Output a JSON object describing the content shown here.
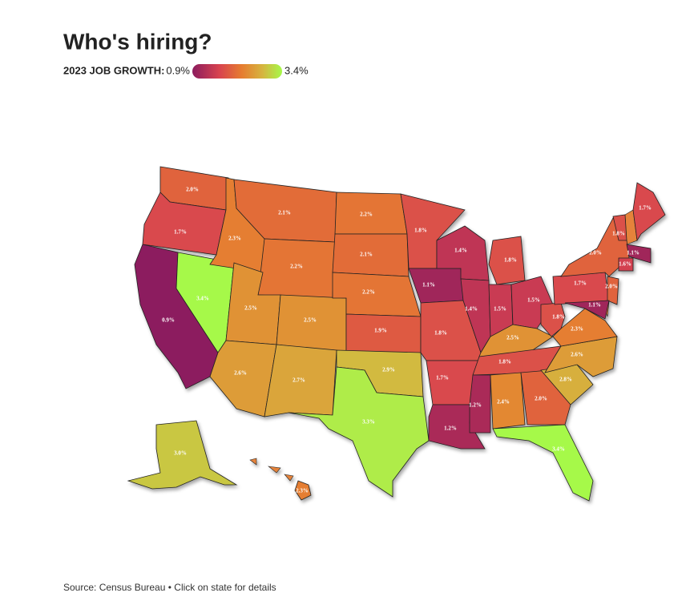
{
  "chart_data": {
    "type": "choropleth",
    "title": "Who's hiring?",
    "legend_title": "2023 JOB GROWTH:",
    "legend_range": [
      {
        "value": 0.9,
        "label": "0.9%"
      },
      {
        "value": 3.4,
        "label": "3.4%"
      }
    ],
    "values": [
      2.0,
      1.7,
      0.9,
      3.4,
      2.3,
      2.1,
      2.2,
      2.5,
      2.5,
      2.6,
      2.7,
      2.2,
      2.1,
      2.2,
      1.9,
      2.9,
      3.3,
      1.8,
      1.1,
      1.8,
      1.7,
      1.2,
      1.4,
      1.4,
      1.8,
      1.5,
      1.5,
      2.5,
      1.8,
      1.2,
      2.4,
      2.0,
      3.4,
      2.8,
      2.6,
      2.3,
      1.8,
      1.7,
      2.0,
      1.8,
      1.7,
      1.1,
      1.6,
      2.0,
      1.1,
      3.0,
      2.3
    ],
    "value_labels": [
      "2.0%",
      "1.7%",
      "0.9%",
      "3.4%",
      "2.3%",
      "2.1%",
      "2.2%",
      "2.5%",
      "2.5%",
      "2.6%",
      "2.7%",
      "2.2%",
      "2.1%",
      "2.2%",
      "1.9%",
      "2.9%",
      "3.3%",
      "1.8%",
      "1.1%",
      "1.8%",
      "1.7%",
      "1.2%",
      "1.4%",
      "1.4%",
      "1.8%",
      "1.5%",
      "1.5%",
      "2.5%",
      "1.8%",
      "1.2%",
      "2.4%",
      "2.0%",
      "3.4%",
      "2.8%",
      "2.6%",
      "2.3%",
      "1.8%",
      "1.7%",
      "2.0%",
      "1.8%",
      "1.7%",
      "1.1%",
      "1.6%",
      "2.0%",
      "1.1%",
      "3.0%",
      "2.3%"
    ],
    "source": "Source: Census Bureau • Click on state for details"
  }
}
